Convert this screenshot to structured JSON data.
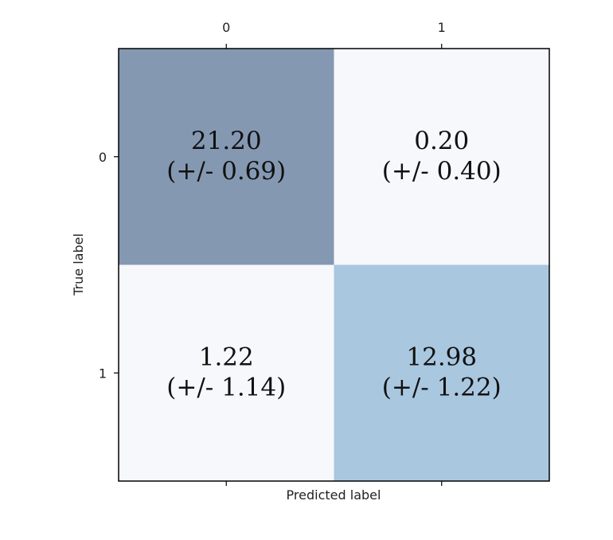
{
  "chart_data": {
    "type": "heatmap",
    "title": "",
    "xlabel": "Predicted label",
    "ylabel": "True label",
    "x_categories": [
      "0",
      "1"
    ],
    "y_categories": [
      "0",
      "1"
    ],
    "values": [
      [
        21.2,
        0.2
      ],
      [
        1.22,
        12.98
      ]
    ],
    "cells": [
      [
        {
          "value": "21.20",
          "std": "(+/- 0.69)"
        },
        {
          "value": "0.20",
          "std": "(+/- 0.40)"
        }
      ],
      [
        {
          "value": "1.22",
          "std": "(+/- 1.14)"
        },
        {
          "value": "12.98",
          "std": "(+/- 1.22)"
        }
      ]
    ],
    "colors": {
      "cell_0_0": "#8598b2",
      "cell_0_1": "#f6f8fc",
      "cell_1_0": "#f6f8fc",
      "cell_1_1": "#a9c7df"
    },
    "xaxis_position": "top",
    "grid": false
  }
}
